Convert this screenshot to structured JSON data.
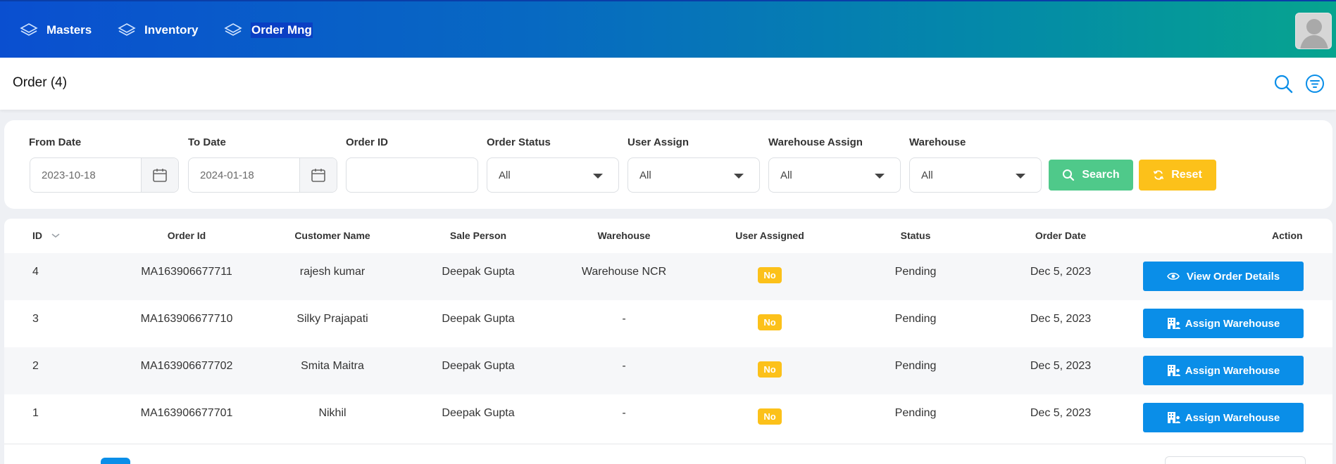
{
  "nav": {
    "items": [
      {
        "label": "Masters",
        "icon": "layers-icon"
      },
      {
        "label": "Inventory",
        "icon": "layers-icon"
      },
      {
        "label": "Order Mng",
        "icon": "layers-icon"
      }
    ]
  },
  "header": {
    "title": "Order (4)",
    "search_icon": "search-icon",
    "filter_icon": "filter-icon"
  },
  "filters": {
    "from_date": {
      "label": "From Date",
      "value": "2023-10-18"
    },
    "to_date": {
      "label": "To Date",
      "value": "2024-01-18"
    },
    "order_id": {
      "label": "Order ID",
      "value": ""
    },
    "order_status": {
      "label": "Order Status",
      "value": "All"
    },
    "user_assign": {
      "label": "User Assign",
      "value": "All"
    },
    "warehouse_assign": {
      "label": "Warehouse Assign",
      "value": "All"
    },
    "warehouse": {
      "label": "Warehouse",
      "value": "All"
    },
    "search_label": "Search",
    "reset_label": "Reset"
  },
  "table": {
    "headers": {
      "id": "ID",
      "order_id": "Order Id",
      "customer": "Customer Name",
      "sale_person": "Sale Person",
      "warehouse": "Warehouse",
      "user_assigned": "User Assigned",
      "status": "Status",
      "order_date": "Order Date",
      "action": "Action"
    },
    "rows": [
      {
        "id": "4",
        "order_id": "MA163906677711",
        "customer": "rajesh kumar",
        "sale_person": "Deepak Gupta",
        "warehouse": "Warehouse NCR",
        "user_assigned": "No",
        "status": "Pending",
        "order_date": "Dec 5, 2023",
        "action": "View Order Details"
      },
      {
        "id": "3",
        "order_id": "MA163906677710",
        "customer": "Silky Prajapati",
        "sale_person": "Deepak Gupta",
        "warehouse": "-",
        "user_assigned": "No",
        "status": "Pending",
        "order_date": "Dec 5, 2023",
        "action": "Assign Warehouse"
      },
      {
        "id": "2",
        "order_id": "MA163906677702",
        "customer": "Smita Maitra",
        "sale_person": "Deepak Gupta",
        "warehouse": "-",
        "user_assigned": "No",
        "status": "Pending",
        "order_date": "Dec 5, 2023",
        "action": "Assign Warehouse"
      },
      {
        "id": "1",
        "order_id": "MA163906677701",
        "customer": "Nikhil",
        "sale_person": "Deepak Gupta",
        "warehouse": "-",
        "user_assigned": "No",
        "status": "Pending",
        "order_date": "Dec 5, 2023",
        "action": "Assign Warehouse"
      }
    ]
  },
  "colors": {
    "primary": "#0a8ee8",
    "success": "#4fc98a",
    "warning": "#fcc11a"
  }
}
